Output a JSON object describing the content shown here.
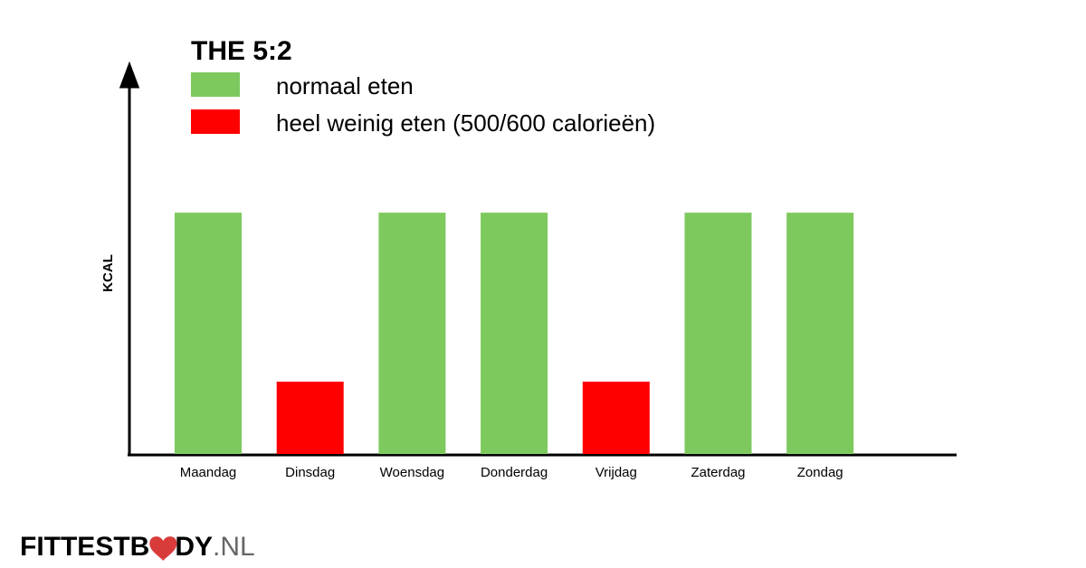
{
  "chart_data": {
    "type": "bar",
    "title": "THE 5:2",
    "y_label": "KCAL",
    "categories": [
      "Maandag",
      "Dinsdag",
      "Woensdag",
      "Donderdag",
      "Vrijdag",
      "Zaterdag",
      "Zondag"
    ],
    "series": [
      {
        "name": "normaal eten",
        "color": "#7dc95e",
        "values": [
          2000,
          null,
          2000,
          2000,
          null,
          2000,
          2000
        ]
      },
      {
        "name": "heel weinig eten (500/600 calorieën)",
        "color": "#ff0000",
        "values": [
          null,
          600,
          null,
          null,
          600,
          null,
          null
        ]
      }
    ],
    "ylim": [
      0,
      3200
    ]
  },
  "logo": {
    "parts": [
      "FITTESTB",
      "DY",
      ".NL"
    ]
  }
}
